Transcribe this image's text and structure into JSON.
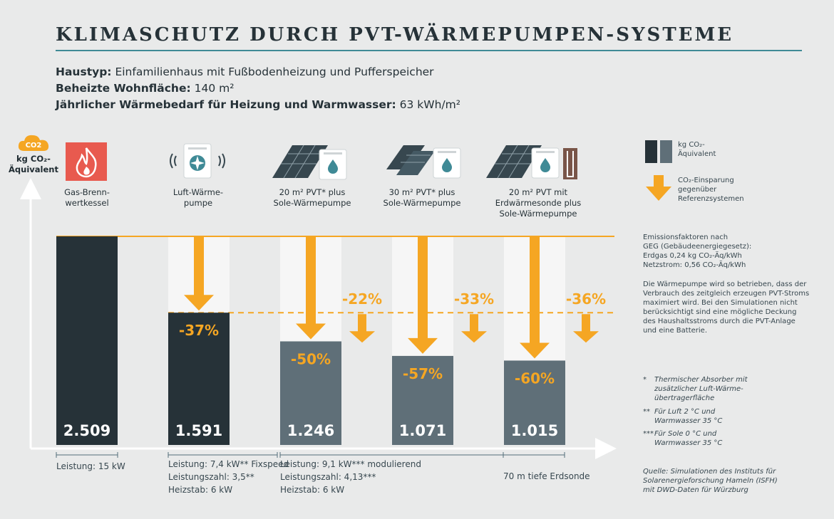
{
  "header": {
    "title": "KLIMASCHUTZ DURCH PVT-WÄRMEPUMPEN-SYSTEME",
    "info": [
      {
        "label": "Haustyp:",
        "value": "Einfamilienhaus mit Fußbodenheizung und Pufferspeicher"
      },
      {
        "label": "Beheizte Wohnfläche:",
        "value": "140 m²"
      },
      {
        "label": "Jährlicher Wärmebedarf für Heizung und Warmwasser:",
        "value": "63 kWh/m²"
      }
    ]
  },
  "y_axis": {
    "badge": "CO2",
    "label_line1": "kg CO₂-",
    "label_line2": "Äquivalent"
  },
  "categories": [
    {
      "line1": "Gas-Brenn-",
      "line2": "wertkessel",
      "line3": ""
    },
    {
      "line1": "Luft-Wärme-",
      "line2": "pumpe",
      "line3": ""
    },
    {
      "line1": "20 m² PVT* plus",
      "line2": "Sole-Wärmepumpe",
      "line3": ""
    },
    {
      "line1": "30 m² PVT* plus",
      "line2": "Sole-Wärmepumpe",
      "line3": ""
    },
    {
      "line1": "20 m² PVT mit",
      "line2": "Erdwärmesonde plus",
      "line3": "Sole-Wärmepumpe"
    }
  ],
  "chart_data": {
    "type": "bar",
    "categories": [
      "Gas-Brennwertkessel",
      "Luft-Wärmepumpe",
      "20 m² PVT* plus Sole-Wärmepumpe",
      "30 m² PVT* plus Sole-Wärmepumpe",
      "20 m² PVT mit Erdwärmesonde plus Sole-Wärmepumpe"
    ],
    "values": [
      2509,
      1591,
      1246,
      1071,
      1015
    ],
    "value_labels": [
      "2.509",
      "1.591",
      "1.246",
      "1.071",
      "1.015"
    ],
    "savings_vs_gas": [
      "",
      "-37%",
      "-50%",
      "-57%",
      "-60%"
    ],
    "savings_vs_air_heatpump": [
      "-22%",
      "-33%",
      "-36%"
    ],
    "ylim": [
      0,
      2509
    ],
    "bar_colors": [
      "#263238",
      "#263238",
      "#5f6f78",
      "#5f6f78",
      "#5f6f78"
    ],
    "accent_color": "#f5a623"
  },
  "legend": {
    "co2_label_line1": "kg CO₂-",
    "co2_label_line2": "Äquivalent",
    "savings_line1": "CO₂-Einsparung",
    "savings_line2": "gegenüber",
    "savings_line3": "Referenzsystemen"
  },
  "notes": {
    "emission_lines": [
      "Emissionsfaktoren nach",
      "GEG (Gebäudeenergiegesetz):",
      "Erdgas 0,24 kg CO₂-Äq/kWh",
      "Netzstrom: 0,56 CO₂-Äq/kWh"
    ],
    "operation_lines": [
      "Die Wärmepumpe wird so betrieben, dass der",
      "Verbrauch des zeitgleich erzeugen PVT-Stroms",
      "maximiert wird. Bei den Simulationen nicht",
      "berücksichtigt sind eine mögliche Deckung",
      "des Haushaltsstroms durch die PVT-Anlage",
      "und eine Batterie."
    ],
    "footnotes": [
      {
        "mark": "*",
        "lines": [
          "Thermischer Absorber mit",
          "zusätzlicher Luft-Wärme-",
          "übertragerfläche"
        ]
      },
      {
        "mark": "**",
        "lines": [
          "Für Luft 2 °C und",
          "Warmwasser 35 °C"
        ]
      },
      {
        "mark": "***",
        "lines": [
          "Für Sole 0 °C und",
          "Warmwasser 35 °C"
        ]
      }
    ],
    "source_lines": [
      "Quelle: Simulationen des Instituts für",
      "Solarenergieforschung Hameln (ISFH)",
      "mit DWD-Daten für Würzburg"
    ]
  },
  "specs": {
    "gas": "Leistung: 15 kW",
    "air": [
      "Leistung: 7,4 kW** Fixspeed",
      "Leistungszahl: 3,5**",
      "Heizstab: 6 kW"
    ],
    "sole": [
      "Leistung: 9,1 kW*** modulierend",
      "Leistungszahl: 4,13***",
      "Heizstab: 6 kW"
    ],
    "probe": "70 m tiefe Erdsonde"
  }
}
